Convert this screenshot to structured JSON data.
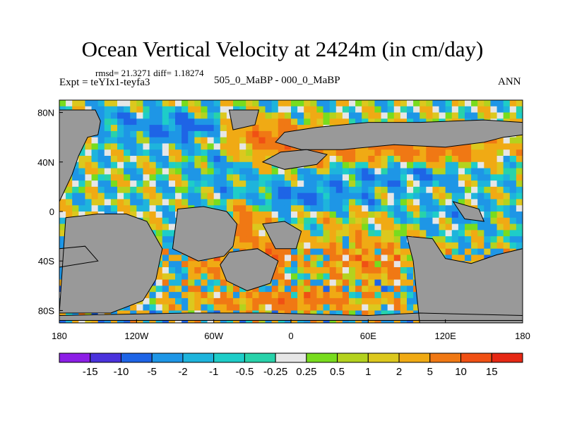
{
  "chart_data": {
    "type": "heatmap",
    "title": "Ocean Vertical Velocity at 2424m (in cm/day)",
    "stats_line": "rmsd= 21.3271 diff= 1.18274",
    "experiment_line": "Expt = teYIx1-teyfa3",
    "period_line": "505_0_MaBP - 000_0_MaBP",
    "season_label": "ANN",
    "projection": "cylindrical equidistant",
    "xlim": [
      -180,
      180
    ],
    "ylim": [
      -90,
      90
    ],
    "x_ticks": [
      {
        "value": -180,
        "label": "180"
      },
      {
        "value": -120,
        "label": "120W"
      },
      {
        "value": -60,
        "label": "60W"
      },
      {
        "value": 0,
        "label": "0"
      },
      {
        "value": 60,
        "label": "60E"
      },
      {
        "value": 120,
        "label": "120E"
      },
      {
        "value": 180,
        "label": "180"
      }
    ],
    "y_ticks": [
      {
        "value": 80,
        "label": "80N"
      },
      {
        "value": 40,
        "label": "40N"
      },
      {
        "value": 0,
        "label": "0"
      },
      {
        "value": -40,
        "label": "40S"
      },
      {
        "value": -80,
        "label": "80S"
      }
    ],
    "land_color": "#999999",
    "colorbar": {
      "levels": [
        "-15",
        "-10",
        "-5",
        "-2",
        "-1",
        "-0.5",
        "-0.25",
        "0.25",
        "0.5",
        "1",
        "2",
        "5",
        "10",
        "15"
      ],
      "colors": [
        "#8c1ee6",
        "#4a32dc",
        "#1e64e6",
        "#1e96e6",
        "#1eb4dc",
        "#1ecdc8",
        "#28d2aa",
        "#e6e6e6",
        "#78dc1e",
        "#b4d21e",
        "#dcc81e",
        "#f0aa14",
        "#f07814",
        "#f05014",
        "#e62814"
      ]
    }
  }
}
